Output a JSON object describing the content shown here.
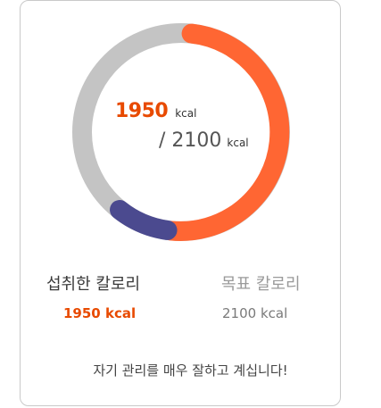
{
  "center": {
    "consumed_value": "1950",
    "consumed_unit": "kcal",
    "goal_text": "/ 2100",
    "goal_unit": "kcal"
  },
  "labels": {
    "consumed_label": "섭취한 칼로리",
    "goal_label": "목표 칼로리"
  },
  "values": {
    "consumed_text": "1950 kcal",
    "goal_text": "2100 kcal"
  },
  "message": "자기 관리를 매우 잘하고 계십니다!",
  "ring": {
    "consumed": 1950,
    "goal": 2100,
    "orange_fraction": 0.5,
    "blue_fraction": 0.09,
    "colors": {
      "orange": "#ff6633",
      "blue": "#4b4a8f",
      "track": "#c4c4c4"
    }
  }
}
